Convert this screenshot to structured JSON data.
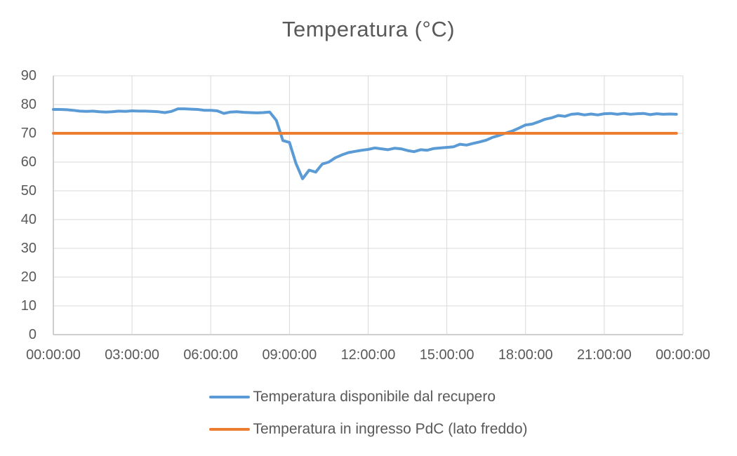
{
  "title": "Temperatura (°C)",
  "colors": {
    "series_recupero": "#5B9BD5",
    "series_pdc": "#ED7D31",
    "gridline": "#D9D9D9",
    "axis_line": "#BFBFBF",
    "text": "#595959",
    "background": "#FFFFFF"
  },
  "legend": {
    "items": [
      {
        "label": "Temperatura disponibile dal recupero",
        "color": "#5B9BD5"
      },
      {
        "label": "Temperatura in ingresso PdC (lato freddo)",
        "color": "#ED7D31"
      }
    ]
  },
  "chart_data": {
    "type": "line",
    "title": "Temperatura (°C)",
    "xlabel": "",
    "ylabel": "",
    "x_unit": "hours",
    "xlim": [
      0,
      24
    ],
    "ylim": [
      0,
      90
    ],
    "grid": true,
    "legend_position": "bottom",
    "yticks": [
      90,
      80,
      70,
      60,
      50,
      40,
      30,
      20,
      10,
      0
    ],
    "xticks": {
      "hours": [
        0,
        3,
        6,
        9,
        12,
        15,
        18,
        21,
        24
      ],
      "labels": [
        "00:00:00",
        "03:00:00",
        "06:00:00",
        "09:00:00",
        "12:00:00",
        "15:00:00",
        "18:00:00",
        "21:00:00",
        "00:00:00"
      ]
    },
    "series": [
      {
        "name": "Temperatura disponibile dal recupero",
        "color": "#5B9BD5",
        "x_start_hour": 0,
        "x_step_hours": 0.25,
        "values": [
          78.3,
          78.3,
          78.2,
          78.0,
          77.7,
          77.6,
          77.7,
          77.5,
          77.4,
          77.5,
          77.7,
          77.6,
          77.8,
          77.7,
          77.7,
          77.6,
          77.5,
          77.2,
          77.6,
          78.5,
          78.5,
          78.4,
          78.3,
          78.0,
          78.0,
          77.8,
          76.9,
          77.4,
          77.5,
          77.3,
          77.2,
          77.1,
          77.2,
          77.4,
          74.5,
          67.5,
          66.8,
          59.5,
          54.2,
          57.2,
          56.5,
          59.3,
          60.0,
          61.5,
          62.5,
          63.3,
          63.7,
          64.1,
          64.4,
          64.9,
          64.6,
          64.3,
          64.8,
          64.6,
          64.0,
          63.6,
          64.3,
          64.1,
          64.7,
          64.9,
          65.1,
          65.3,
          66.2,
          65.9,
          66.5,
          67.0,
          67.6,
          68.6,
          69.3,
          70.1,
          70.8,
          71.8,
          72.9,
          73.2,
          74.0,
          74.9,
          75.4,
          76.2,
          75.9,
          76.6,
          76.8,
          76.4,
          76.7,
          76.4,
          76.8,
          76.9,
          76.6,
          76.9,
          76.6,
          76.8,
          76.9,
          76.5,
          76.8,
          76.6,
          76.7,
          76.6
        ]
      },
      {
        "name": "Temperatura in ingresso PdC (lato freddo)",
        "color": "#ED7D31",
        "constant_value": 70,
        "x_start_hour": 0,
        "x_end_hour": 23.75
      }
    ]
  }
}
